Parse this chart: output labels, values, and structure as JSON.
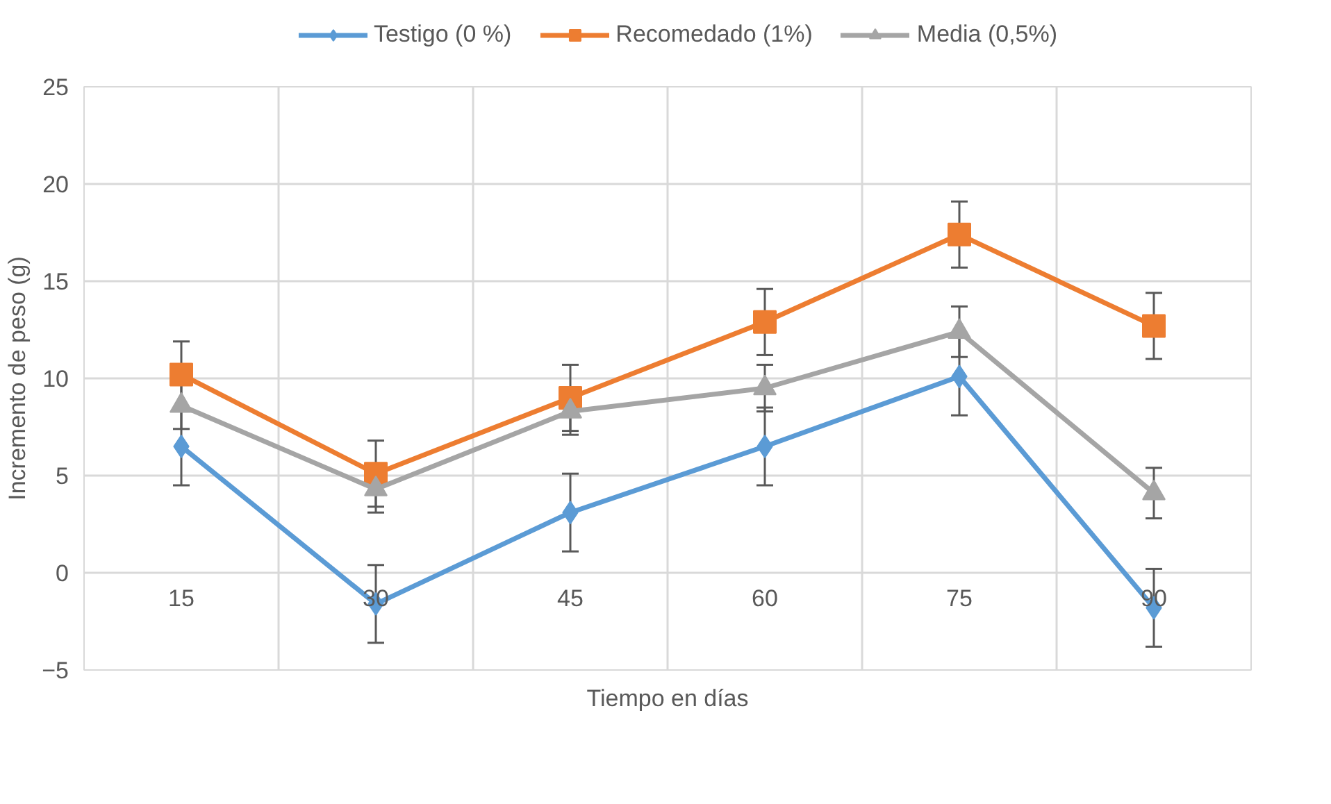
{
  "chart_data": {
    "type": "line",
    "xlabel": "Tiempo en días",
    "ylabel": "Incremento de peso (g)",
    "categories": [
      "15",
      "30",
      "45",
      "60",
      "75",
      "90"
    ],
    "ylim": [
      -5,
      25
    ],
    "yticks": [
      -5,
      0,
      5,
      10,
      15,
      20,
      25
    ],
    "grid": true,
    "legend": "top",
    "line_style": "solid",
    "series": [
      {
        "name": "Testigo (0 %)",
        "color": "#5b9bd5",
        "marker": "diamond",
        "values": [
          6.5,
          -1.6,
          3.1,
          6.5,
          10.1,
          -1.8
        ],
        "errors": [
          2.0,
          2.0,
          2.0,
          2.0,
          2.0,
          2.0
        ]
      },
      {
        "name": "Recomedado (1%)",
        "color": "#ed7d31",
        "marker": "square",
        "values": [
          10.2,
          5.1,
          9.0,
          12.9,
          17.4,
          12.7
        ],
        "errors": [
          1.7,
          1.7,
          1.7,
          1.7,
          1.7,
          1.7
        ]
      },
      {
        "name": "Media (0,5%)",
        "color": "#a5a5a5",
        "marker": "triangle",
        "values": [
          8.6,
          4.3,
          8.3,
          9.5,
          12.4,
          4.1
        ],
        "errors": [
          1.2,
          1.2,
          1.2,
          1.2,
          1.3,
          1.3
        ]
      }
    ]
  }
}
